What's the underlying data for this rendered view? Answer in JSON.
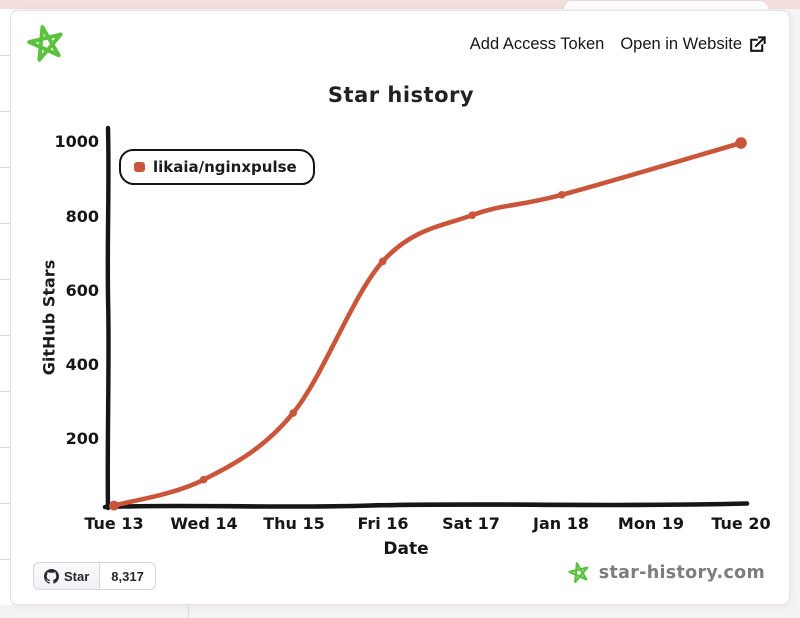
{
  "header": {
    "add_access_token": "Add Access Token",
    "open_in_website": "Open in Website"
  },
  "chart": {
    "title": "Star history",
    "xlabel": "Date",
    "ylabel": "GitHub Stars",
    "legend_label": "likaia/nginxpulse",
    "line_color": "#c9553b",
    "y_ticks": [
      "1000",
      "800",
      "600",
      "400",
      "200"
    ],
    "x_ticks": [
      "Tue 13",
      "Wed 14",
      "Thu 15",
      "Fri 16",
      "Sat 17",
      "Jan 18",
      "Mon 19",
      "Tue 20"
    ]
  },
  "chart_data": {
    "type": "line",
    "title": "Star history",
    "xlabel": "Date",
    "ylabel": "GitHub Stars",
    "categories": [
      "Tue 13",
      "Wed 14",
      "Thu 15",
      "Fri 16",
      "Sat 17",
      "Jan 18",
      "Mon 19",
      "Tue 20"
    ],
    "series": [
      {
        "name": "likaia/nginxpulse",
        "color": "#c9553b",
        "values": [
          20,
          90,
          270,
          680,
          805,
          860,
          null,
          1000
        ]
      }
    ],
    "y_tick_values": [
      200,
      400,
      600,
      800,
      1000
    ],
    "ylim": [
      20,
      1000
    ],
    "grid": false,
    "legend_position": "top-left",
    "style": "hand-drawn (xkcd)"
  },
  "footer": {
    "star_button_label": "Star",
    "star_count": "8,317",
    "brand": "star-history.com"
  },
  "colors": {
    "brand_green": "#5cc13e",
    "axis_black": "#161616",
    "top_bar_pink": "#f1dedd"
  }
}
